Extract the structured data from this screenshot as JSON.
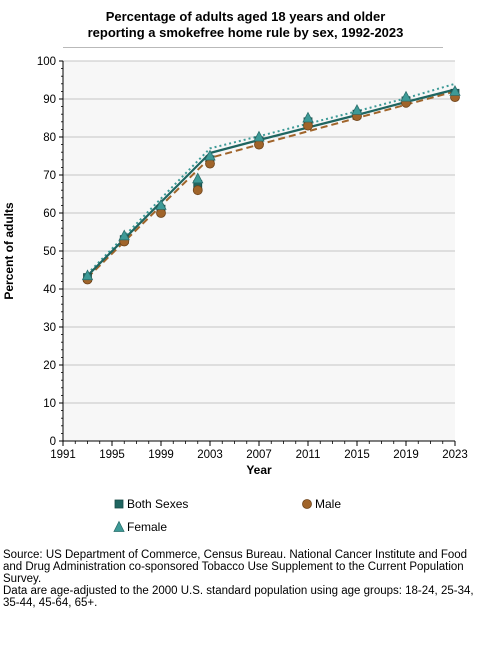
{
  "title_line1": "Percentage of adults aged 18 years and older",
  "title_line2": "reporting a smokefree home rule by sex, 1992-2023",
  "legend": {
    "both": "Both Sexes",
    "male": "Male",
    "female": "Female"
  },
  "footer": {
    "source": "Source: US Department of Commerce, Census Bureau. National Cancer Institute and Food and Drug Administration co-sponsored Tobacco Use Supplement to the Current Population Survey.",
    "note": "Data are age-adjusted to the 2000 U.S. standard population using age groups: 18-24, 25-34, 35-44, 45-64, 65+."
  },
  "colors": {
    "both": "#1f6560",
    "male": "#a0642a",
    "female": "#3d9a97",
    "plot_bg": "#f7f7f7",
    "grid": "#c4c4c4"
  },
  "chart_data": {
    "type": "line",
    "title": "Percentage of adults aged 18 years and older reporting a smokefree home rule by sex, 1992-2023",
    "xlabel": "Year",
    "ylabel": "Percent of adults",
    "xlim": [
      1991,
      2023
    ],
    "ylim": [
      0,
      100
    ],
    "xticks": [
      1991,
      1995,
      1999,
      2003,
      2007,
      2011,
      2015,
      2019,
      2023
    ],
    "yticks": [
      0,
      10,
      20,
      30,
      40,
      50,
      60,
      70,
      80,
      90,
      100
    ],
    "grid": "horizontal",
    "legend_position": "bottom",
    "series": [
      {
        "name": "Both Sexes",
        "marker": "square",
        "line": "solid",
        "points_x": [
          1993,
          1996,
          1999,
          2002,
          2003,
          2007,
          2011,
          2015,
          2019,
          2023
        ],
        "points_y": [
          43.0,
          53.0,
          61.0,
          67.5,
          74.0,
          79.0,
          84.0,
          86.0,
          89.5,
          91.5
        ],
        "trend_x": [
          1993,
          2003,
          2007,
          2011,
          2015,
          2019,
          2023
        ],
        "trend_y": [
          43.5,
          75.8,
          79.2,
          82.5,
          85.8,
          89.2,
          92.5
        ]
      },
      {
        "name": "Male",
        "marker": "circle",
        "line": "dashed",
        "points_x": [
          1993,
          1996,
          1999,
          2002,
          2003,
          2007,
          2011,
          2015,
          2019,
          2023
        ],
        "points_y": [
          42.5,
          52.5,
          60.0,
          66.0,
          73.0,
          78.0,
          83.0,
          85.5,
          89.0,
          90.5
        ],
        "trend_x": [
          1993,
          2003,
          2007,
          2011,
          2015,
          2019,
          2023
        ],
        "trend_y": [
          43.0,
          74.5,
          78.0,
          81.5,
          85.0,
          88.5,
          92.0
        ]
      },
      {
        "name": "Female",
        "marker": "triangle",
        "line": "dotted",
        "points_x": [
          1993,
          1996,
          1999,
          2002,
          2003,
          2007,
          2011,
          2015,
          2019,
          2023
        ],
        "points_y": [
          43.5,
          54.0,
          62.0,
          69.0,
          75.0,
          80.0,
          85.0,
          87.0,
          90.5,
          92.0
        ],
        "trend_x": [
          1993,
          2003,
          2007,
          2011,
          2015,
          2019,
          2023
        ],
        "trend_y": [
          44.0,
          77.0,
          80.2,
          83.5,
          86.8,
          90.2,
          94.0
        ]
      }
    ]
  }
}
